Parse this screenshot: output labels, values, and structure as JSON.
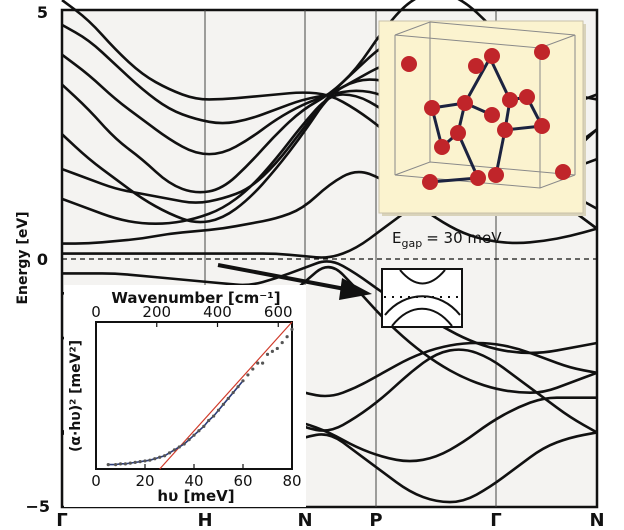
{
  "chart_data": [
    {
      "type": "line",
      "description_kind": "band-structure",
      "ylabel": "Energy [eV]",
      "ylim": [
        -5,
        5
      ],
      "y_ticks": [
        "5",
        "0",
        "−5"
      ],
      "x_ticks": [
        "Γ",
        "H",
        "N",
        "P",
        "Γ",
        "N"
      ],
      "fermi_level": 0,
      "annotation": {
        "label": "E",
        "subscript": "gap",
        "value": "= 30 meV"
      },
      "series": [
        {
          "x": [
            0,
            0.05,
            0.1,
            0.15,
            0.2,
            0.25,
            0.3,
            0.35,
            0.4,
            0.45,
            0.5,
            0.55,
            0.6,
            0.65,
            0.7,
            0.75,
            0.8,
            0.85,
            0.9,
            0.95,
            1
          ],
          "y": [
            5.2,
            4.8,
            4.2,
            3.7,
            3.4,
            3.2,
            3.2,
            3.25,
            3.3,
            3.35,
            3.3,
            3.0,
            2.6,
            2.1,
            1.8,
            1.6,
            1.5,
            1.5,
            1.7,
            2.1,
            2.6
          ]
        },
        {
          "x": [
            0,
            0.05,
            0.1,
            0.15,
            0.2,
            0.25,
            0.3,
            0.35,
            0.4,
            0.45,
            0.5,
            0.55,
            0.6,
            0.65,
            0.7,
            0.75,
            0.8,
            0.85,
            0.9,
            0.95,
            1
          ],
          "y": [
            4.7,
            4.4,
            3.9,
            3.4,
            3.0,
            2.8,
            2.7,
            2.8,
            3.0,
            3.2,
            3.3,
            3.4,
            3.3,
            3.0,
            2.6,
            2.2,
            1.9,
            1.8,
            1.9,
            2.2,
            2.6
          ]
        },
        {
          "x": [
            0,
            0.05,
            0.1,
            0.15,
            0.2,
            0.25,
            0.3,
            0.35,
            0.4,
            0.45,
            0.5,
            0.55,
            0.6,
            0.65,
            0.7,
            0.75,
            0.8,
            0.85,
            0.9,
            0.95,
            1
          ],
          "y": [
            4.1,
            3.7,
            3.2,
            2.8,
            2.4,
            2.1,
            2.1,
            2.4,
            2.8,
            3.1,
            3.3,
            3.6,
            3.9,
            4.0,
            3.8,
            3.4,
            2.9,
            2.4,
            2.0,
            1.8,
            2.0
          ]
        },
        {
          "x": [
            0,
            0.05,
            0.1,
            0.15,
            0.2,
            0.25,
            0.3,
            0.35,
            0.4,
            0.45,
            0.5,
            0.55,
            0.6,
            0.65,
            0.7,
            0.75,
            0.8,
            0.85,
            0.9,
            0.95,
            1
          ],
          "y": [
            3.5,
            3.0,
            2.4,
            2.0,
            1.5,
            1.3,
            1.4,
            1.9,
            2.5,
            3.0,
            3.3,
            3.8,
            4.3,
            4.5,
            4.3,
            3.9,
            3.5,
            3.2,
            3.0,
            3.1,
            3.3
          ]
        },
        {
          "x": [
            0,
            0.05,
            0.1,
            0.15,
            0.2,
            0.25,
            0.3,
            0.35,
            0.4,
            0.45,
            0.5,
            0.55,
            0.6,
            0.65,
            0.7,
            0.75,
            0.8,
            0.85,
            0.9,
            0.95,
            1
          ],
          "y": [
            2.5,
            2.0,
            1.6,
            1.2,
            0.9,
            0.7,
            0.8,
            1.2,
            1.8,
            2.5,
            3.3,
            3.6,
            3.6,
            3.4,
            3.0,
            2.6,
            2.3,
            2.1,
            1.7,
            1.3,
            1.0
          ]
        },
        {
          "x": [
            0,
            0.05,
            0.1,
            0.15,
            0.2,
            0.25,
            0.3,
            0.35,
            0.4,
            0.45,
            0.5,
            0.55,
            0.6,
            0.65,
            0.7,
            0.75,
            0.8,
            0.85,
            0.9,
            0.95,
            1
          ],
          "y": [
            1.8,
            1.6,
            1.4,
            1.3,
            1.2,
            1.1,
            1.2,
            1.4,
            1.9,
            2.6,
            3.3,
            3.8,
            4.6,
            5.2,
            5.4,
            5.2,
            4.7,
            4.1,
            3.6,
            3.3,
            3.2
          ]
        },
        {
          "x": [
            0,
            0.05,
            0.1,
            0.15,
            0.2,
            0.25,
            0.3,
            0.35,
            0.4,
            0.45,
            0.5,
            0.55,
            0.6,
            0.65,
            0.7,
            0.75,
            0.8,
            0.85,
            0.9,
            0.95,
            1
          ],
          "y": [
            1.2,
            1.0,
            0.8,
            0.7,
            0.7,
            0.8,
            1.0,
            1.4,
            2.0,
            2.7,
            3.3,
            3.3,
            3.0,
            2.6,
            2.4,
            2.3,
            2.1,
            1.8,
            1.4,
            1.0,
            0.6
          ]
        },
        {
          "x": [
            0,
            0.05,
            0.1,
            0.15,
            0.2,
            0.25,
            0.3,
            0.35,
            0.4,
            0.45,
            0.5,
            0.55,
            0.6,
            0.65,
            0.7,
            0.75,
            0.8,
            0.85,
            0.9,
            0.95,
            1
          ],
          "y": [
            0.3,
            0.3,
            0.35,
            0.4,
            0.5,
            0.55,
            0.6,
            0.7,
            0.8,
            1.0,
            1.5,
            1.8,
            1.6,
            1.2,
            0.8,
            0.5,
            0.35,
            0.3,
            0.35,
            0.45,
            0.6
          ]
        },
        {
          "x": [
            0,
            0.05,
            0.1,
            0.15,
            0.2,
            0.25,
            0.3,
            0.35,
            0.4,
            0.45,
            0.5,
            0.55,
            0.6,
            0.65,
            0.7,
            0.75,
            0.8,
            0.85,
            0.9,
            0.95,
            1
          ],
          "y": [
            0.1,
            0.1,
            0.1,
            0.1,
            0.1,
            0.1,
            0.1,
            0.1,
            0.1,
            0.05,
            0.0,
            0.2,
            0.6,
            1.0,
            1.4,
            1.6,
            1.7,
            1.6,
            1.4,
            1.0,
            0.6
          ]
        },
        {
          "x": [
            0,
            0.05,
            0.1,
            0.15,
            0.2,
            0.25,
            0.3,
            0.35,
            0.4,
            0.45,
            0.5,
            0.55,
            0.6,
            0.65,
            0.7,
            0.75,
            0.8,
            0.85,
            0.9,
            0.95,
            1
          ],
          "y": [
            -0.3,
            -0.3,
            -0.3,
            -0.35,
            -0.4,
            -0.45,
            -0.5,
            -0.55,
            -0.4,
            -0.2,
            0.0,
            -0.3,
            -0.7,
            -1.0,
            -1.3,
            -1.6,
            -1.8,
            -1.9,
            -1.9,
            -1.8,
            -1.7
          ]
        },
        {
          "x": [
            0,
            0.05,
            0.1,
            0.15,
            0.2,
            0.25,
            0.3,
            0.35,
            0.4,
            0.45,
            0.5,
            0.55,
            0.6,
            0.65,
            0.7,
            0.75,
            0.8,
            0.85,
            0.9,
            0.95,
            1
          ],
          "y": [
            -0.7,
            -0.7,
            -0.7,
            -0.8,
            -0.9,
            -1.0,
            -1.1,
            -1.2,
            -1.0,
            -0.5,
            -0.05,
            -0.6,
            -1.2,
            -1.7,
            -2.1,
            -2.4,
            -2.6,
            -2.7,
            -2.7,
            -2.5,
            -2.3
          ]
        },
        {
          "x": [
            0,
            0.05,
            0.1,
            0.15,
            0.2,
            0.25,
            0.3,
            0.35,
            0.4,
            0.45,
            0.5,
            0.55,
            0.6,
            0.65,
            0.7,
            0.75,
            0.8,
            0.85,
            0.9,
            0.95,
            1
          ],
          "y": [
            -1.6,
            -1.6,
            -1.6,
            -1.7,
            -1.8,
            -1.9,
            -2.0,
            -2.2,
            -2.5,
            -2.7,
            -2.8,
            -2.6,
            -2.3,
            -2.0,
            -1.8,
            -1.7,
            -1.7,
            -1.8,
            -2.0,
            -2.2,
            -2.3
          ]
        },
        {
          "x": [
            0,
            0.05,
            0.1,
            0.15,
            0.2,
            0.25,
            0.3,
            0.35,
            0.4,
            0.45,
            0.5,
            0.55,
            0.6,
            0.65,
            0.7,
            0.75,
            0.8,
            0.85,
            0.9,
            0.95,
            1
          ],
          "y": [
            -3.5,
            -3.2,
            -2.9,
            -2.6,
            -2.4,
            -2.3,
            -2.4,
            -2.7,
            -3.1,
            -3.4,
            -3.5,
            -3.2,
            -2.8,
            -2.3,
            -1.9,
            -1.8,
            -2.0,
            -2.4,
            -2.8,
            -3.2,
            -3.5
          ]
        },
        {
          "x": [
            0,
            0.05,
            0.1,
            0.15,
            0.2,
            0.25,
            0.3,
            0.35,
            0.4,
            0.45,
            0.5,
            0.55,
            0.6,
            0.65,
            0.7,
            0.75,
            0.8,
            0.85,
            0.9,
            0.95,
            1
          ],
          "y": [
            -3.5,
            -3.7,
            -3.9,
            -4.0,
            -4.0,
            -3.9,
            -3.6,
            -3.3,
            -3.2,
            -3.3,
            -3.5,
            -3.8,
            -4.0,
            -4.1,
            -4.0,
            -3.7,
            -3.3,
            -3.0,
            -2.8,
            -2.8,
            -2.8
          ]
        },
        {
          "x": [
            0,
            0.05,
            0.1,
            0.15,
            0.2,
            0.25,
            0.3,
            0.35,
            0.4,
            0.45,
            0.5,
            0.55,
            0.6,
            0.65,
            0.7,
            0.75,
            0.8,
            0.85,
            0.9,
            0.95,
            1
          ],
          "y": [
            -3.5,
            -3.8,
            -4.2,
            -4.5,
            -4.7,
            -4.8,
            -4.6,
            -4.2,
            -3.8,
            -3.6,
            -3.5,
            -3.9,
            -4.3,
            -4.7,
            -4.9,
            -4.9,
            -4.6,
            -4.2,
            -3.8,
            -3.6,
            -3.5
          ]
        }
      ]
    },
    {
      "type": "scatter",
      "xlabel": "hυ [meV]",
      "ylabel": "(α·hυ)² [meV²]",
      "top_label": "Wavenumber [cm⁻¹]",
      "xlim": [
        0,
        80
      ],
      "ylim": [
        0,
        1
      ],
      "x_ticks": [
        "0",
        "20",
        "40",
        "60",
        "80"
      ],
      "top_ticks": [
        "0",
        "200",
        "400",
        "600"
      ],
      "top_tick_values": [
        0,
        200,
        400,
        600
      ],
      "points": {
        "x": [
          5,
          8,
          10,
          12,
          14,
          16,
          18,
          20,
          22,
          24,
          26,
          28,
          30,
          32,
          34,
          36,
          38,
          40,
          42,
          44,
          46,
          48,
          50,
          52,
          54,
          56,
          58,
          60,
          62,
          64,
          66,
          68,
          70,
          72,
          74,
          76,
          78,
          80
        ],
        "y": [
          0.03,
          0.03,
          0.035,
          0.035,
          0.04,
          0.045,
          0.05,
          0.055,
          0.06,
          0.07,
          0.08,
          0.09,
          0.11,
          0.13,
          0.15,
          0.17,
          0.2,
          0.23,
          0.26,
          0.29,
          0.33,
          0.36,
          0.4,
          0.44,
          0.48,
          0.52,
          0.56,
          0.6,
          0.64,
          0.68,
          0.72,
          0.72,
          0.78,
          0.8,
          0.82,
          0.86,
          0.9,
          0.95
        ]
      },
      "fit_line": {
        "x": [
          26,
          80
        ],
        "y": [
          0,
          1.0
        ]
      },
      "fit_color": "#d03a2a"
    }
  ]
}
